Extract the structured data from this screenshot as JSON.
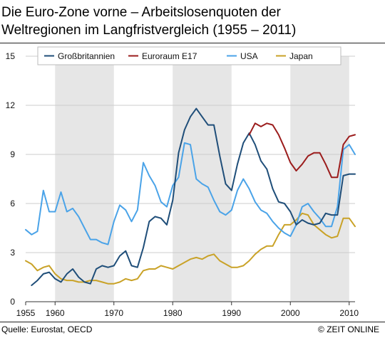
{
  "header": {
    "title_line1": "Die Euro-Zone vorne – Arbeitslosenquoten der",
    "title_line2": "Weltregionen im Langfristvergleich (1955 – 2011)"
  },
  "footer": {
    "source": "Quelle: Eurostat, OECD",
    "credit": "© ZEIT ONLINE"
  },
  "chart_data": {
    "type": "line",
    "title": "Die Euro-Zone vorne – Arbeitslosenquoten der Weltregionen im Langfristvergleich (1955 – 2011)",
    "xlim": [
      1955,
      2011
    ],
    "ylim": [
      0,
      15
    ],
    "x_ticks": [
      1955,
      1960,
      1970,
      1980,
      1990,
      2000,
      2010
    ],
    "y_ticks": [
      0,
      3,
      6,
      9,
      12,
      15
    ],
    "grid": "horizontal",
    "legend_position": "top",
    "shaded_bands": [
      [
        1960,
        1970
      ],
      [
        1980,
        1990
      ],
      [
        2000,
        2010
      ]
    ],
    "band_color": "#e6e6e6",
    "series": [
      {
        "name": "Großbritannien",
        "color": "#1f4e79",
        "x": [
          1956,
          1957,
          1958,
          1959,
          1960,
          1961,
          1962,
          1963,
          1964,
          1965,
          1966,
          1967,
          1968,
          1969,
          1970,
          1971,
          1972,
          1973,
          1974,
          1975,
          1976,
          1977,
          1978,
          1979,
          1980,
          1981,
          1982,
          1983,
          1984,
          1985,
          1986,
          1987,
          1988,
          1989,
          1990,
          1991,
          1992,
          1993,
          1994,
          1995,
          1996,
          1997,
          1998,
          1999,
          2000,
          2001,
          2002,
          2003,
          2004,
          2005,
          2006,
          2007,
          2008,
          2009,
          2010,
          2011
        ],
        "values": [
          1.0,
          1.3,
          1.7,
          1.8,
          1.4,
          1.2,
          1.7,
          2.0,
          1.5,
          1.2,
          1.1,
          2.0,
          2.2,
          2.1,
          2.2,
          2.8,
          3.1,
          2.2,
          2.1,
          3.3,
          4.9,
          5.2,
          5.1,
          4.7,
          6.2,
          9.1,
          10.5,
          11.3,
          11.8,
          11.3,
          10.8,
          10.8,
          8.9,
          7.2,
          6.8,
          8.4,
          9.7,
          10.3,
          9.6,
          8.6,
          8.1,
          6.9,
          6.1,
          6.0,
          5.5,
          4.7,
          5.0,
          4.8,
          4.7,
          4.8,
          5.4,
          5.3,
          5.3,
          7.7,
          7.8,
          7.8
        ]
      },
      {
        "name": "Euroraum E17",
        "color": "#9b1c1c",
        "x": [
          1993,
          1994,
          1995,
          1996,
          1997,
          1998,
          1999,
          2000,
          2001,
          2002,
          2003,
          2004,
          2005,
          2006,
          2007,
          2008,
          2009,
          2010,
          2011
        ],
        "values": [
          10.2,
          10.9,
          10.7,
          10.9,
          10.8,
          10.2,
          9.4,
          8.5,
          8.0,
          8.4,
          8.9,
          9.1,
          9.1,
          8.4,
          7.6,
          7.6,
          9.6,
          10.1,
          10.2
        ]
      },
      {
        "name": "USA",
        "color": "#4aa3e8",
        "x": [
          1955,
          1956,
          1957,
          1958,
          1959,
          1960,
          1961,
          1962,
          1963,
          1964,
          1965,
          1966,
          1967,
          1968,
          1969,
          1970,
          1971,
          1972,
          1973,
          1974,
          1975,
          1976,
          1977,
          1978,
          1979,
          1980,
          1981,
          1982,
          1983,
          1984,
          1985,
          1986,
          1987,
          1988,
          1989,
          1990,
          1991,
          1992,
          1993,
          1994,
          1995,
          1996,
          1997,
          1998,
          1999,
          2000,
          2001,
          2002,
          2003,
          2004,
          2005,
          2006,
          2007,
          2008,
          2009,
          2010,
          2011
        ],
        "values": [
          4.4,
          4.1,
          4.3,
          6.8,
          5.5,
          5.5,
          6.7,
          5.5,
          5.7,
          5.2,
          4.5,
          3.8,
          3.8,
          3.6,
          3.5,
          4.9,
          5.9,
          5.6,
          4.9,
          5.6,
          8.5,
          7.7,
          7.1,
          6.1,
          5.8,
          7.1,
          7.6,
          9.7,
          9.6,
          7.5,
          7.2,
          7.0,
          6.2,
          5.5,
          5.3,
          5.6,
          6.8,
          7.5,
          6.9,
          6.1,
          5.6,
          5.4,
          4.9,
          4.5,
          4.2,
          4.0,
          4.7,
          5.8,
          6.0,
          5.5,
          5.1,
          4.6,
          4.6,
          5.8,
          9.3,
          9.6,
          9.0
        ]
      },
      {
        "name": "Japan",
        "color": "#c9a227",
        "x": [
          1955,
          1956,
          1957,
          1958,
          1959,
          1960,
          1961,
          1962,
          1963,
          1964,
          1965,
          1966,
          1967,
          1968,
          1969,
          1970,
          1971,
          1972,
          1973,
          1974,
          1975,
          1976,
          1977,
          1978,
          1979,
          1980,
          1981,
          1982,
          1983,
          1984,
          1985,
          1986,
          1987,
          1988,
          1989,
          1990,
          1991,
          1992,
          1993,
          1994,
          1995,
          1996,
          1997,
          1998,
          1999,
          2000,
          2001,
          2002,
          2003,
          2004,
          2005,
          2006,
          2007,
          2008,
          2009,
          2010,
          2011
        ],
        "values": [
          2.5,
          2.3,
          1.9,
          2.1,
          2.2,
          1.7,
          1.4,
          1.3,
          1.3,
          1.2,
          1.2,
          1.3,
          1.3,
          1.2,
          1.1,
          1.1,
          1.2,
          1.4,
          1.3,
          1.4,
          1.9,
          2.0,
          2.0,
          2.2,
          2.1,
          2.0,
          2.2,
          2.4,
          2.6,
          2.7,
          2.6,
          2.8,
          2.9,
          2.5,
          2.3,
          2.1,
          2.1,
          2.2,
          2.5,
          2.9,
          3.2,
          3.4,
          3.4,
          4.1,
          4.7,
          4.7,
          5.0,
          5.4,
          5.3,
          4.7,
          4.4,
          4.1,
          3.9,
          4.0,
          5.1,
          5.1,
          4.6
        ]
      }
    ]
  }
}
